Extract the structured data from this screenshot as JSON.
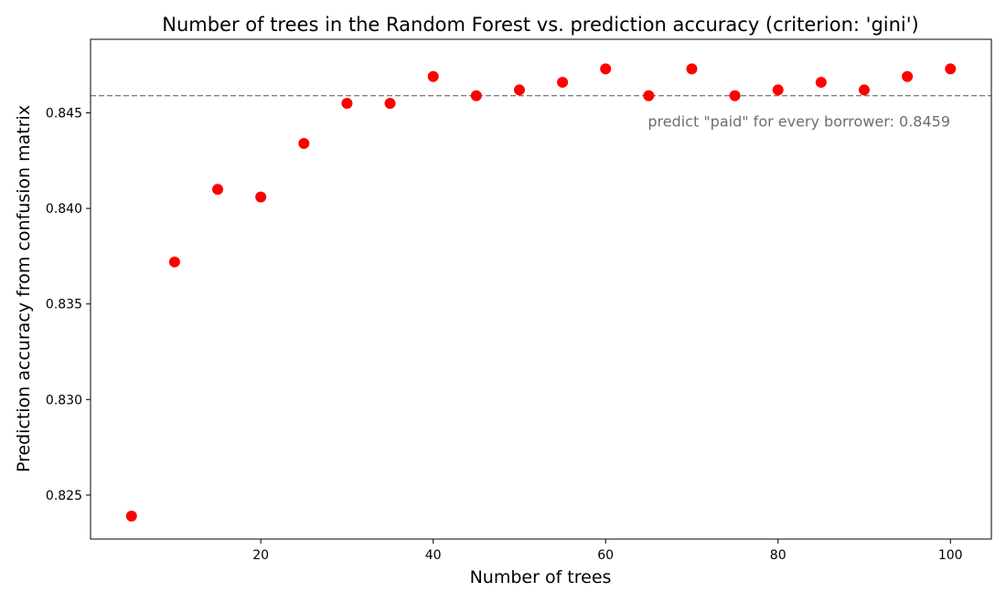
{
  "chart_data": {
    "type": "scatter",
    "title": "Number of trees in the Random Forest vs. prediction accuracy (criterion: 'gini')",
    "xlabel": "Number of trees",
    "ylabel": "Prediction accuracy from confusion matrix",
    "xlim": [
      0.25,
      104.75
    ],
    "ylim": [
      0.8227,
      0.84885
    ],
    "xticks": [
      20,
      40,
      60,
      80,
      100
    ],
    "yticks": [
      0.825,
      0.83,
      0.835,
      0.84,
      0.845
    ],
    "ytick_labels": [
      "0.825",
      "0.830",
      "0.835",
      "0.840",
      "0.845"
    ],
    "grid": false,
    "marker_color": "#ff0000",
    "series": [
      {
        "x": [
          5,
          10,
          15,
          20,
          25,
          30,
          35,
          40,
          45,
          50,
          55,
          60,
          65,
          70,
          75,
          80,
          85,
          90,
          95,
          100
        ],
        "y": [
          0.8239,
          0.8372,
          0.841,
          0.8406,
          0.8434,
          0.8455,
          0.8455,
          0.8469,
          0.8459,
          0.8462,
          0.8466,
          0.8473,
          0.8459,
          0.8473,
          0.8459,
          0.8462,
          0.8466,
          0.8462,
          0.8469,
          0.8473
        ]
      }
    ],
    "baseline": {
      "value": 0.8459,
      "color": "#808080",
      "style": "dashed",
      "label": "predict \"paid\" for every borrower: 0.8459"
    }
  }
}
